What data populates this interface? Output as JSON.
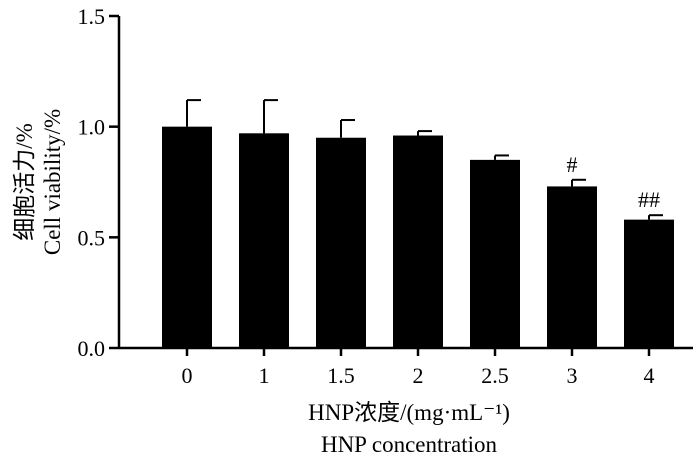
{
  "chart_data": {
    "type": "bar",
    "categories": [
      "0",
      "1",
      "1.5",
      "2",
      "2.5",
      "3",
      "4"
    ],
    "values": [
      1.0,
      0.97,
      0.95,
      0.96,
      0.85,
      0.73,
      0.58
    ],
    "errors": [
      0.12,
      0.15,
      0.08,
      0.02,
      0.02,
      0.03,
      0.02
    ],
    "annotations": [
      "",
      "",
      "",
      "",
      "",
      "#",
      "##"
    ],
    "ylim": [
      0,
      1.5
    ],
    "yticks": [
      "0.0",
      "0.5",
      "1.0",
      "1.5"
    ],
    "ylabel_line1": "细胞活力/%",
    "ylabel_line2": "Cell viability/%",
    "xlabel_line1": "HNP浓度/(mg·mL⁻¹)",
    "xlabel_line2": "HNP concentration",
    "bar_color": "#000000",
    "grid": false,
    "legend": "none"
  }
}
